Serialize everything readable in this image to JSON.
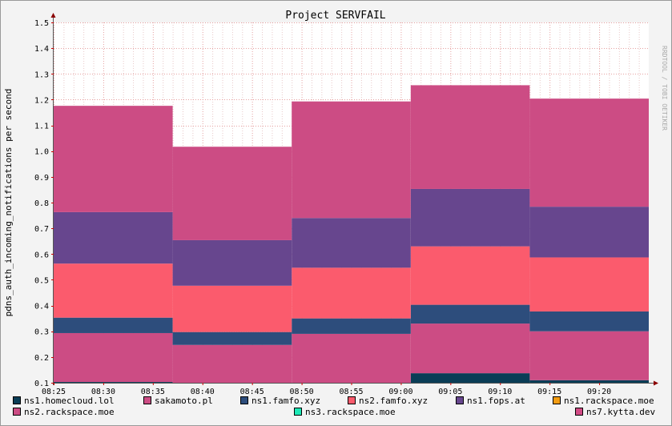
{
  "chart_data": {
    "type": "area",
    "title": "Project SERVFAIL",
    "ylabel": "pdns_auth_incoming_notifications per second",
    "xlabel": "",
    "watermark": "RRDTOOL / TOBI OETIKER",
    "ylim": [
      0.1,
      1.5
    ],
    "xlim_minutes": [
      0,
      60
    ],
    "y_ticks": [
      0.1,
      0.2,
      0.3,
      0.4,
      0.5,
      0.6,
      0.7,
      0.8,
      0.9,
      1.0,
      1.1,
      1.2,
      1.3,
      1.4,
      1.5
    ],
    "y_tick_labels": [
      "0.1",
      "0.2",
      "0.3",
      "0.4",
      "0.5",
      "0.6",
      "0.7",
      "0.8",
      "0.9",
      "1.0",
      "1.1",
      "1.2",
      "1.3",
      "1.4",
      "1.5"
    ],
    "x_ticks": [
      {
        "label": "08:25",
        "t": 0
      },
      {
        "label": "08:30",
        "t": 5
      },
      {
        "label": "08:35",
        "t": 10
      },
      {
        "label": "08:40",
        "t": 15
      },
      {
        "label": "08:45",
        "t": 20
      },
      {
        "label": "08:50",
        "t": 25
      },
      {
        "label": "08:55",
        "t": 30
      },
      {
        "label": "09:00",
        "t": 35
      },
      {
        "label": "09:05",
        "t": 40
      },
      {
        "label": "09:10",
        "t": 45
      },
      {
        "label": "09:15",
        "t": 50
      },
      {
        "label": "09:20",
        "t": 55
      }
    ],
    "grid": true,
    "legend_position": "bottom",
    "intervals": [
      {
        "start": 0,
        "end": 12
      },
      {
        "start": 12,
        "end": 24
      },
      {
        "start": 24,
        "end": 36
      },
      {
        "start": 36,
        "end": 48
      },
      {
        "start": 48,
        "end": 60
      }
    ],
    "series": [
      {
        "name": "ns1.homecloud.lol",
        "color": "#0a3d56",
        "values": [
          0.103,
          0.077,
          0.083,
          0.137,
          0.11
        ]
      },
      {
        "name": "sakamoto.pl",
        "color": "#cc4c84",
        "values": [
          0.19,
          0.17,
          0.207,
          0.193,
          0.19
        ]
      },
      {
        "name": "ns1.famfo.xyz",
        "color": "#2d4d7c",
        "values": [
          0.06,
          0.05,
          0.06,
          0.073,
          0.077
        ]
      },
      {
        "name": "ns2.famfo.xyz",
        "color": "#fb5b6d",
        "values": [
          0.21,
          0.18,
          0.197,
          0.227,
          0.21
        ]
      },
      {
        "name": "ns1.fops.at",
        "color": "#67468e",
        "values": [
          0.2,
          0.177,
          0.193,
          0.223,
          0.197
        ]
      },
      {
        "name": "ns1.rackspace.moe",
        "color": "#f39c12",
        "values": [
          0,
          0,
          0,
          0,
          0
        ]
      },
      {
        "name": "ns2.rackspace.moe",
        "color": "#cc4c84",
        "values": [
          0.413,
          0.363,
          0.453,
          0.403,
          0.42
        ]
      },
      {
        "name": "ns3.rackspace.moe",
        "color": "#1de9b6",
        "values": [
          0,
          0,
          0,
          0,
          0
        ]
      },
      {
        "name": "ns7.kytta.dev",
        "color": "#d24b85",
        "values": [
          0,
          0,
          0,
          0,
          0
        ]
      }
    ]
  }
}
